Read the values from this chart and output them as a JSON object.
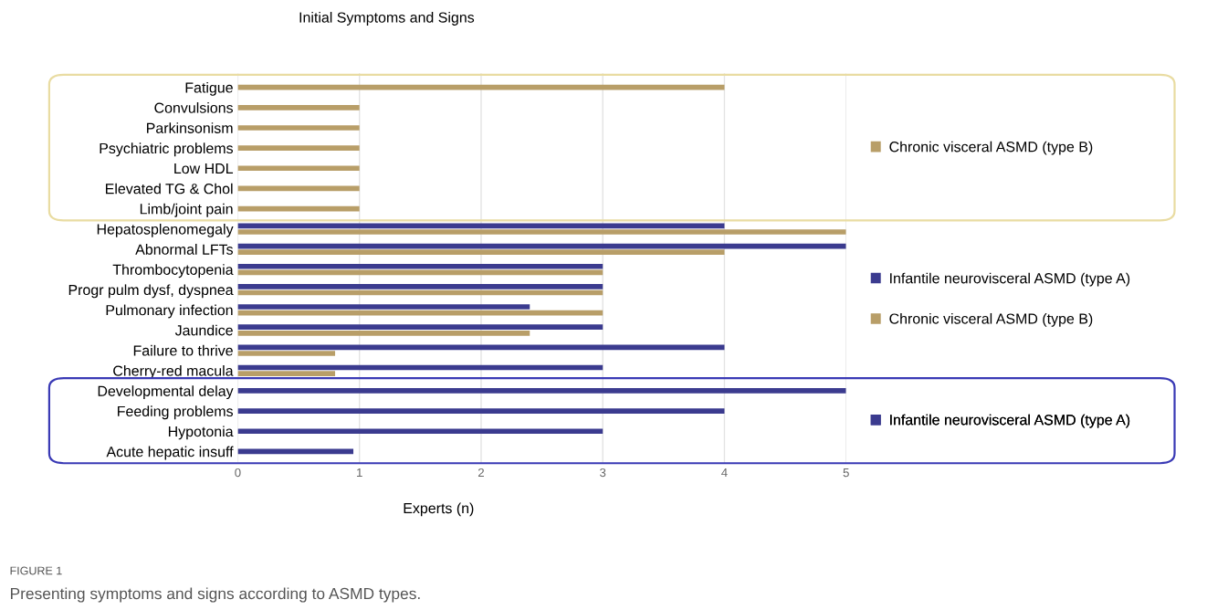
{
  "chart_data": {
    "type": "bar",
    "orientation": "horizontal",
    "title": "Initial Symptoms and Signs",
    "xlabel": "Experts (n)",
    "categories": [
      "Fatigue",
      "Convulsions",
      "Parkinsonism",
      "Psychiatric problems",
      "Low HDL",
      "Elevated TG & Chol",
      "Limb/joint pain",
      "Hepatosplenomegaly",
      "Abnormal LFTs",
      "Thrombocytopenia",
      "Progr pulm dysf, dyspnea",
      "Pulmonary infection",
      "Jaundice",
      "Failure to thrive",
      "Cherry-red macula",
      "Developmental delay",
      "Feeding problems",
      "Hypotonia",
      "Acute hepatic insuff"
    ],
    "series": [
      {
        "name": "Infantile neurovisceral ASMD (type A)",
        "color": "#3b3b8f",
        "values": [
          null,
          null,
          null,
          null,
          null,
          null,
          null,
          4,
          5,
          3,
          3,
          2.4,
          3,
          4,
          3,
          5,
          4,
          3,
          0.95
        ]
      },
      {
        "name": "Chronic visceral ASMD (type B)",
        "color": "#b89e68",
        "values": [
          4,
          1,
          1,
          1,
          1,
          1,
          1,
          5,
          4,
          3,
          3,
          3,
          2.4,
          0.8,
          0.8,
          null,
          null,
          null,
          null
        ]
      }
    ],
    "xlim": [
      0,
      5
    ],
    "xticks": [
      0,
      1,
      2,
      3,
      4,
      5
    ],
    "grid": "x",
    "legend": "right",
    "annotations": [
      "FIGURE 1",
      "Presenting symptoms and signs according to ASMD types."
    ]
  }
}
